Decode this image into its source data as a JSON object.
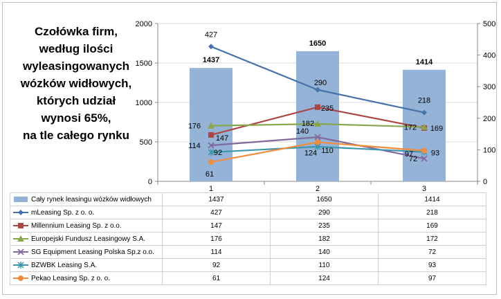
{
  "chart_data": {
    "type": "bar+line",
    "title_lines": [
      "Czołówka  firm,",
      "według ilości",
      "wyleasingowanych",
      "wózków widłowych,",
      "których udział",
      "wynosi 65%,",
      "na tle całego rynku"
    ],
    "categories": [
      "1",
      "2",
      "3"
    ],
    "y_left": {
      "min": 0,
      "max": 2000,
      "ticks": [
        "0",
        "500",
        "1000",
        "1500",
        "2000"
      ]
    },
    "y_right": {
      "min": 0,
      "max": 500,
      "ticks": [
        "0",
        "100",
        "200",
        "300",
        "400",
        "500"
      ]
    },
    "bar_series": {
      "name": "Cały rynek leasingu wózków widłowych",
      "values": [
        1437,
        1650,
        1414
      ],
      "labels": [
        "1437",
        "1650",
        "1414"
      ],
      "color": "#95b3d7"
    },
    "line_series": [
      {
        "name": "mLeasing Sp. z o. o.",
        "values": [
          427,
          290,
          218
        ],
        "labels": [
          "427",
          "290",
          "218"
        ],
        "color": "#4572a7",
        "marker": "diamond"
      },
      {
        "name": "Millennium Leasing Sp. z o.o.",
        "values": [
          147,
          235,
          169
        ],
        "labels": [
          "147",
          "235",
          "169"
        ],
        "color": "#aa4643",
        "marker": "square"
      },
      {
        "name": "Europejski Fundusz Leasingowy S.A.",
        "values": [
          176,
          182,
          172
        ],
        "labels": [
          "176",
          "182",
          "172"
        ],
        "color": "#89a54e",
        "marker": "triangle"
      },
      {
        "name": "SG Equipment Leasing Polska Sp.z o.o.",
        "values": [
          114,
          140,
          72
        ],
        "labels": [
          "114",
          "140",
          "72"
        ],
        "color": "#80699b",
        "marker": "x"
      },
      {
        "name": "BZWBK Leasing S.A.",
        "values": [
          92,
          110,
          93
        ],
        "labels": [
          "92",
          "110",
          "93"
        ],
        "color": "#3d96ae",
        "marker": "star"
      },
      {
        "name": "Pekao Leasing Sp. z o. o.",
        "values": [
          61,
          124,
          97
        ],
        "labels": [
          "61",
          "124",
          "97"
        ],
        "color": "#f08c3c",
        "marker": "circle"
      }
    ]
  }
}
